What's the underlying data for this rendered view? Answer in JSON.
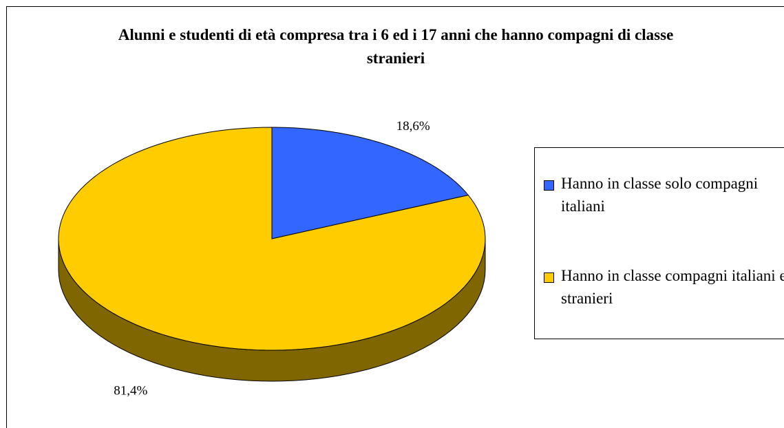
{
  "chart_data": {
    "type": "pie",
    "title": "Alunni e studenti di età compresa tra i 6 ed i 17 anni che hanno compagni di classe stranieri",
    "categories": [
      "Hanno in classe solo compagni italiani",
      "Hanno in classe compagni italiani e stranieri"
    ],
    "values": [
      18.6,
      81.4
    ],
    "value_labels": [
      "18,6%",
      "81,4%"
    ],
    "colors": [
      "#3366ff",
      "#ffcc00"
    ],
    "side_colors": [
      "#1a3380",
      "#806600"
    ],
    "legend": "right"
  }
}
